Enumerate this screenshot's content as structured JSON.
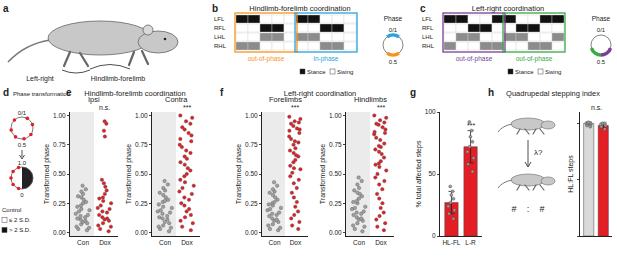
{
  "figure": {
    "a": {
      "letter": "a",
      "labels": [
        "Left-right",
        "Hindlimb-forelimb"
      ]
    },
    "b": {
      "letter": "b",
      "title": "Hindlimb-forelimb coordination",
      "rows": [
        "LFL",
        "RFL",
        "LHL",
        "RHL"
      ],
      "pattern": [
        [
          1,
          1,
          0,
          0,
          0,
          1,
          1,
          0,
          0,
          0
        ],
        [
          0,
          0,
          1,
          1,
          0,
          0,
          0,
          1,
          1,
          0
        ],
        [
          0,
          0,
          1,
          1,
          0,
          1,
          1,
          0,
          0,
          0
        ],
        [
          1,
          1,
          0,
          0,
          0,
          0,
          0,
          1,
          1,
          0
        ]
      ],
      "row_colors": [
        "#111111",
        "#111111",
        "#8c8c8c",
        "#8c8c8c"
      ],
      "boxes": [
        {
          "label": "out-of-phase",
          "color": "#f7941d",
          "phase": [
            0.4,
            0.6
          ]
        },
        {
          "label": "in-phase",
          "color": "#29a3dc",
          "phase": [
            0.9,
            0.1
          ]
        }
      ],
      "legend": [
        {
          "label": "Stance",
          "color": "#111111"
        },
        {
          "label": "Swing",
          "color": "#ffffff"
        }
      ],
      "phase": {
        "label": "Phase",
        "top": "0/1",
        "bottom": "0.5"
      }
    },
    "c": {
      "letter": "c",
      "title": "Left-right coordination",
      "rows": [
        "LFL",
        "RFL",
        "LHL",
        "RHL"
      ],
      "pattern": [
        [
          1,
          1,
          0,
          0,
          1,
          1,
          0,
          0,
          1,
          1
        ],
        [
          0,
          0,
          1,
          1,
          0,
          0,
          1,
          1,
          0,
          0
        ],
        [
          0,
          1,
          1,
          0,
          0,
          1,
          1,
          0,
          0,
          1
        ],
        [
          1,
          0,
          0,
          1,
          1,
          0,
          0,
          1,
          1,
          0
        ]
      ],
      "row_colors": [
        "#111111",
        "#111111",
        "#8c8c8c",
        "#8c8c8c"
      ],
      "boxes": [
        {
          "label": "out-of-phase",
          "color": "#7b3f98",
          "phase": [
            0.3,
            0.5
          ]
        },
        {
          "label": "out-of-phase",
          "color": "#39a845",
          "phase": [
            0.5,
            0.7
          ]
        }
      ],
      "legend": [
        {
          "label": "Stance",
          "color": "#111111"
        },
        {
          "label": "Swing",
          "color": "#ffffff"
        }
      ],
      "phase": {
        "label": "Phase",
        "top": "0/1",
        "bottom": "0.5"
      }
    },
    "d": {
      "letter": "d",
      "title": "Phase transformation",
      "circle_labels": [
        "0/1",
        "0.5"
      ],
      "half_labels": [
        "1.0",
        "0"
      ],
      "legend_title": "Control",
      "legend": [
        {
          "label": "≤ 2 S.D.",
          "color": "#ffffff"
        },
        {
          "label": "> 2 S.D.",
          "color": "#111111"
        }
      ]
    },
    "e": {
      "letter": "e",
      "title": "Hindlimb-forelimb coordination"
    },
    "f": {
      "letter": "f",
      "title": "Left-right coordination"
    },
    "g": {
      "letter": "g"
    },
    "h": {
      "letter": "h",
      "title": "Quadrupedal stepping index",
      "labels": [
        "λ?",
        "#",
        ":",
        "#"
      ]
    }
  },
  "chart_data": [
    {
      "type": "strip",
      "title": "Ipsi",
      "significance": "n.s.",
      "ylabel": "Transformed phase",
      "categories": [
        "Con",
        "Dox"
      ],
      "colors": [
        "#a0a0a0",
        "#e31e24"
      ],
      "values": [
        [
          0.02,
          0.04,
          0.05,
          0.07,
          0.08,
          0.1,
          0.11,
          0.12,
          0.14,
          0.15,
          0.16,
          0.18,
          0.19,
          0.2,
          0.22,
          0.23,
          0.25,
          0.26,
          0.28,
          0.3,
          0.31,
          0.33,
          0.35,
          0.37,
          0.4,
          0.03,
          0.09,
          0.13
        ],
        [
          0.01,
          0.03,
          0.05,
          0.06,
          0.08,
          0.1,
          0.12,
          0.13,
          0.15,
          0.17,
          0.18,
          0.2,
          0.21,
          0.23,
          0.25,
          0.27,
          0.29,
          0.3,
          0.33,
          0.36,
          0.39,
          0.42,
          0.45,
          0.82,
          0.87,
          0.93,
          0.95,
          0.11
        ]
      ],
      "ylim": [
        -0.03,
        1.03
      ],
      "yticks": [
        {
          "value": 0,
          "label": "0.00"
        },
        {
          "value": 0.25,
          "label": "0.25"
        },
        {
          "value": 0.5,
          "label": "0.50"
        },
        {
          "value": 0.75,
          "label": "0.75"
        },
        {
          "value": 1,
          "label": "1.00"
        }
      ]
    },
    {
      "type": "strip",
      "title": "Contra",
      "significance": "***",
      "ylabel": "Transformed phase",
      "categories": [
        "Con",
        "Dox"
      ],
      "colors": [
        "#a0a0a0",
        "#e31e24"
      ],
      "values": [
        [
          0.01,
          0.03,
          0.04,
          0.06,
          0.08,
          0.09,
          0.11,
          0.13,
          0.14,
          0.16,
          0.17,
          0.19,
          0.21,
          0.22,
          0.24,
          0.26,
          0.28,
          0.3,
          0.32,
          0.34,
          0.36,
          0.38,
          0.41,
          0.44,
          0.05,
          0.12,
          0.18,
          0.27
        ],
        [
          0.02,
          0.05,
          0.08,
          0.1,
          0.13,
          0.15,
          0.18,
          0.2,
          0.23,
          0.25,
          0.28,
          0.3,
          0.33,
          0.35,
          0.38,
          0.4,
          0.43,
          0.45,
          0.48,
          0.5,
          0.53,
          0.55,
          0.58,
          0.6,
          0.63,
          0.65,
          0.68,
          0.7,
          0.73,
          0.75,
          0.78,
          0.8,
          0.83,
          0.85,
          0.88,
          0.9,
          0.93,
          0.95,
          0.98,
          1.0
        ]
      ],
      "ylim": [
        -0.03,
        1.03
      ],
      "yticks": [
        {
          "value": 0,
          "label": "0.00"
        },
        {
          "value": 0.25,
          "label": "0.25"
        },
        {
          "value": 0.5,
          "label": "0.50"
        },
        {
          "value": 0.75,
          "label": "0.75"
        },
        {
          "value": 1,
          "label": "1.00"
        }
      ]
    },
    {
      "type": "strip",
      "title": "Forelimbs",
      "significance": "***",
      "ylabel": "Transformed phase",
      "categories": [
        "Con",
        "Dox"
      ],
      "colors": [
        "#a0a0a0",
        "#e31e24"
      ],
      "values": [
        [
          0.02,
          0.04,
          0.06,
          0.07,
          0.09,
          0.11,
          0.12,
          0.14,
          0.16,
          0.17,
          0.19,
          0.21,
          0.23,
          0.24,
          0.26,
          0.28,
          0.3,
          0.32,
          0.34,
          0.37,
          0.4,
          0.43,
          0.03,
          0.1,
          0.15,
          0.2,
          0.25,
          0.35
        ],
        [
          0.03,
          0.06,
          0.09,
          0.12,
          0.15,
          0.18,
          0.22,
          0.26,
          0.3,
          0.34,
          0.38,
          0.42,
          0.45,
          0.48,
          0.51,
          0.54,
          0.57,
          0.6,
          0.62,
          0.65,
          0.68,
          0.7,
          0.72,
          0.75,
          0.77,
          0.8,
          0.82,
          0.85,
          0.87,
          0.89,
          0.91,
          0.93,
          0.95,
          0.97,
          0.99,
          0.55,
          0.66,
          0.78,
          0.88,
          0.94
        ]
      ],
      "ylim": [
        -0.03,
        1.03
      ],
      "yticks": [
        {
          "value": 0,
          "label": "0.00"
        },
        {
          "value": 0.25,
          "label": "0.25"
        },
        {
          "value": 0.5,
          "label": "0.50"
        },
        {
          "value": 0.75,
          "label": "0.75"
        },
        {
          "value": 1,
          "label": "1.00"
        }
      ]
    },
    {
      "type": "strip",
      "title": "Hindlimbs",
      "significance": "***",
      "ylabel": "Transformed phase",
      "categories": [
        "Con",
        "Dox"
      ],
      "colors": [
        "#a0a0a0",
        "#e31e24"
      ],
      "values": [
        [
          0.01,
          0.03,
          0.05,
          0.08,
          0.1,
          0.12,
          0.13,
          0.15,
          0.17,
          0.18,
          0.2,
          0.22,
          0.25,
          0.27,
          0.29,
          0.31,
          0.33,
          0.36,
          0.38,
          0.41,
          0.44,
          0.47,
          0.06,
          0.11,
          0.16,
          0.21,
          0.26,
          0.34
        ],
        [
          0.02,
          0.05,
          0.08,
          0.11,
          0.14,
          0.17,
          0.21,
          0.25,
          0.29,
          0.33,
          0.37,
          0.41,
          0.44,
          0.47,
          0.5,
          0.53,
          0.56,
          0.59,
          0.61,
          0.64,
          0.67,
          0.69,
          0.71,
          0.74,
          0.76,
          0.79,
          0.81,
          0.84,
          0.86,
          0.88,
          0.9,
          0.92,
          0.94,
          0.96,
          0.98,
          1.0,
          0.58,
          0.73,
          0.85,
          0.93
        ]
      ],
      "ylim": [
        -0.03,
        1.03
      ],
      "yticks": [
        {
          "value": 0,
          "label": "0.00"
        },
        {
          "value": 0.25,
          "label": "0.25"
        },
        {
          "value": 0.5,
          "label": "0.50"
        },
        {
          "value": 0.75,
          "label": "0.75"
        },
        {
          "value": 1,
          "label": "1.00"
        }
      ]
    },
    {
      "type": "bar",
      "ylabel": "% total affected steps",
      "categories": [
        "HL-FL",
        "L-R"
      ],
      "values": [
        27,
        72
      ],
      "error": [
        9,
        13
      ],
      "color": "#e31e24",
      "points": [
        [
          14,
          18,
          21,
          24,
          27,
          30,
          33,
          36,
          40
        ],
        [
          52,
          58,
          63,
          68,
          72,
          76,
          80,
          85,
          92
        ]
      ],
      "significance": [
        null,
        "***"
      ],
      "ylim": [
        0,
        100
      ],
      "yticks": [
        0,
        50,
        100
      ]
    },
    {
      "type": "bar",
      "ylabel": "HL:FL steps",
      "categories": [
        null,
        null
      ],
      "values": [
        1.0,
        0.98
      ],
      "error": [
        0.01,
        0.02
      ],
      "colors": [
        "#d9d9d9",
        "#e31e24"
      ],
      "points": [
        [
          0.97,
          0.98,
          0.99,
          1.0,
          1.0,
          1.0,
          1.01
        ],
        [
          0.95,
          0.97,
          0.98,
          0.99,
          1.0,
          1.0
        ]
      ],
      "significance": "n.s.",
      "ylim": [
        0,
        1.1
      ],
      "yticks": [
        0,
        0.5,
        1
      ],
      "tick_labels": false
    }
  ]
}
